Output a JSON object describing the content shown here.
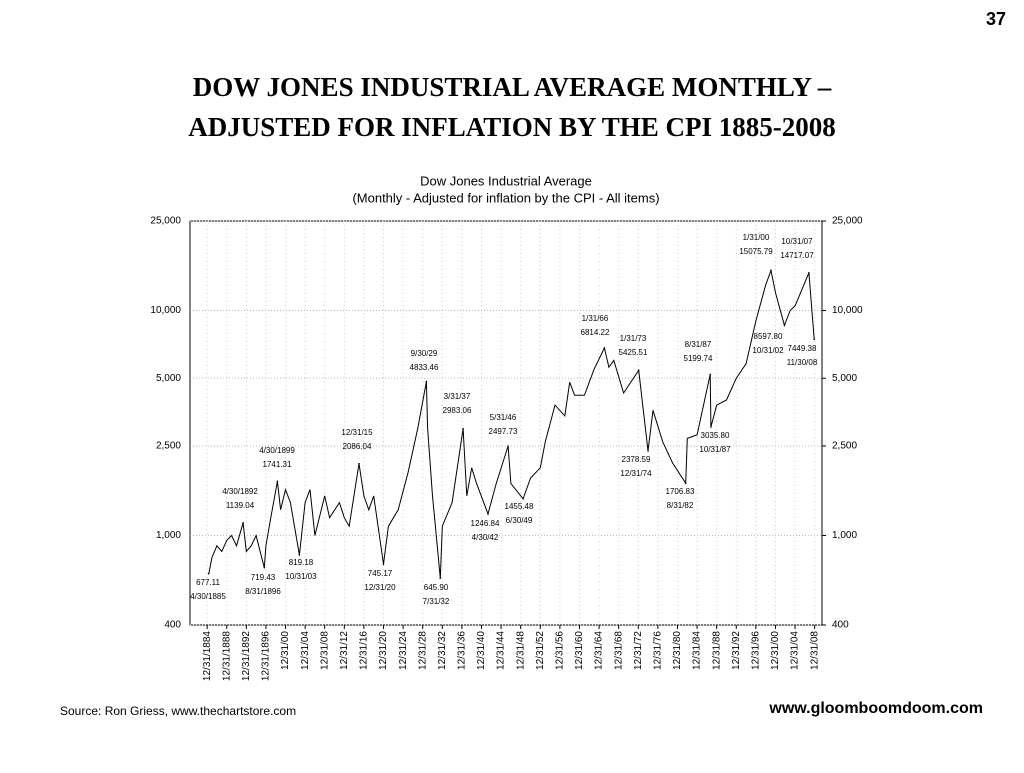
{
  "page_number": "37",
  "heading": [
    "DOW  JONES  INDUSTRIAL  AVERAGE  MONTHLY –",
    "ADJUSTED  FOR  INFLATION  BY  THE  CPI  1885-2008"
  ],
  "source": "Source:  Ron Griess, www.thechartstore.com",
  "website": "www.gloomboomdoom.com",
  "chart_data": {
    "type": "line",
    "title": "Dow Jones Industrial Average",
    "subtitle": "(Monthly - Adjusted for inflation by the CPI - All items)",
    "log_y": true,
    "grid": true,
    "xlim": [
      1881.5,
      2010.5
    ],
    "ylim": [
      400,
      25000
    ],
    "yticks": [
      {
        "value": 400,
        "label": "400"
      },
      {
        "value": 1000,
        "label": "1,000"
      },
      {
        "value": 2500,
        "label": "2,500"
      },
      {
        "value": 5000,
        "label": "5,000"
      },
      {
        "value": 10000,
        "label": "10,000"
      },
      {
        "value": 25000,
        "label": "25,000"
      }
    ],
    "xticks": [
      {
        "value": 1885,
        "label": "12/31/1884"
      },
      {
        "value": 1889,
        "label": "12/31/1888"
      },
      {
        "value": 1893,
        "label": "12/31/1892"
      },
      {
        "value": 1897,
        "label": "12/31/1896"
      },
      {
        "value": 1901,
        "label": "12/31/00"
      },
      {
        "value": 1905,
        "label": "12/31/04"
      },
      {
        "value": 1909,
        "label": "12/31/08"
      },
      {
        "value": 1913,
        "label": "12/31/12"
      },
      {
        "value": 1917,
        "label": "12/31/16"
      },
      {
        "value": 1921,
        "label": "12/31/20"
      },
      {
        "value": 1925,
        "label": "12/31/24"
      },
      {
        "value": 1929,
        "label": "12/31/28"
      },
      {
        "value": 1933,
        "label": "12/31/32"
      },
      {
        "value": 1937,
        "label": "12/31/36"
      },
      {
        "value": 1941,
        "label": "12/31/40"
      },
      {
        "value": 1945,
        "label": "12/31/44"
      },
      {
        "value": 1949,
        "label": "12/31/48"
      },
      {
        "value": 1953,
        "label": "12/31/52"
      },
      {
        "value": 1957,
        "label": "12/31/56"
      },
      {
        "value": 1961,
        "label": "12/31/60"
      },
      {
        "value": 1965,
        "label": "12/31/64"
      },
      {
        "value": 1969,
        "label": "12/31/68"
      },
      {
        "value": 1973,
        "label": "12/31/72"
      },
      {
        "value": 1977,
        "label": "12/31/76"
      },
      {
        "value": 1981,
        "label": "12/31/80"
      },
      {
        "value": 1985,
        "label": "12/31/84"
      },
      {
        "value": 1989,
        "label": "12/31/88"
      },
      {
        "value": 1993,
        "label": "12/31/92"
      },
      {
        "value": 1997,
        "label": "12/31/96"
      },
      {
        "value": 2001,
        "label": "12/31/00"
      },
      {
        "value": 2005,
        "label": "12/31/04"
      },
      {
        "value": 2009,
        "label": "12/31/08"
      }
    ],
    "x": [
      1885.33,
      1886,
      1887,
      1888,
      1889,
      1890,
      1891,
      1892.33,
      1893,
      1894,
      1895,
      1896.67,
      1897,
      1898,
      1899.33,
      1900,
      1901,
      1902,
      1903.83,
      1905,
      1906,
      1907,
      1909,
      1910,
      1912,
      1913,
      1914,
      1915.99,
      1917,
      1918,
      1919,
      1920.99,
      1922,
      1924,
      1926,
      1928,
      1929.75,
      1930,
      1931,
      1932.58,
      1933,
      1935,
      1937.25,
      1938,
      1939,
      1940,
      1942.33,
      1944,
      1946.42,
      1947,
      1949.5,
      1951,
      1953,
      1954,
      1956,
      1958,
      1959,
      1960,
      1962,
      1964,
      1966.08,
      1967,
      1968,
      1970,
      1973.08,
      1974.99,
      1976,
      1978,
      1980,
      1982.67,
      1983,
      1985,
      1987.67,
      1987.83,
      1989,
      1991,
      1993,
      1995,
      1997,
      1999,
      2000.08,
      2001,
      2002.83,
      2004,
      2005,
      2007.83,
      2008.9
    ],
    "series": [
      {
        "color": "#000000",
        "values": [
          677,
          800,
          900,
          850,
          950,
          1000,
          900,
          1139,
          850,
          900,
          1000,
          719,
          900,
          1200,
          1741,
          1300,
          1600,
          1400,
          819,
          1400,
          1600,
          1000,
          1500,
          1200,
          1400,
          1200,
          1100,
          2086,
          1500,
          1300,
          1500,
          745,
          1100,
          1300,
          1900,
          3000,
          4833,
          3000,
          1500,
          646,
          1100,
          1400,
          2983,
          1500,
          2000,
          1700,
          1247,
          1700,
          2498,
          1700,
          1455,
          1800,
          2000,
          2600,
          3800,
          3400,
          4800,
          4200,
          4200,
          5500,
          6814,
          5600,
          6000,
          4300,
          5426,
          2379,
          3600,
          2600,
          2100,
          1707,
          2700,
          2800,
          5200,
          3036,
          3800,
          4000,
          5000,
          5800,
          9000,
          13000,
          15076,
          12000,
          8598,
          10000,
          10500,
          14717,
          7449
        ]
      }
    ],
    "annotations": [
      {
        "x": 1885.33,
        "date": "4/30/1885",
        "value": 677.11,
        "label": "677.11"
      },
      {
        "x": 1896.67,
        "date": "8/31/1896",
        "value": 719.43,
        "label": "719.43"
      },
      {
        "x": 1892.33,
        "date": "4/30/1892",
        "value": 1139.04,
        "label": "1139.04"
      },
      {
        "x": 1899.33,
        "date": "4/30/1899",
        "value": 1741.31,
        "label": "1741.31"
      },
      {
        "x": 1903.83,
        "date": "10/31/03",
        "value": 819.18,
        "label": "819.18"
      },
      {
        "x": 1915.99,
        "date": "12/31/15",
        "value": 2086.04,
        "label": "2086.04"
      },
      {
        "x": 1920.99,
        "date": "12/31/20",
        "value": 745.17,
        "label": "745.17"
      },
      {
        "x": 1929.75,
        "date": "9/30/29",
        "value": 4833.46,
        "label": "4833.46"
      },
      {
        "x": 1932.58,
        "date": "7/31/32",
        "value": 645.9,
        "label": "645.90"
      },
      {
        "x": 1937.25,
        "date": "3/31/37",
        "value": 2983.06,
        "label": "2983.06"
      },
      {
        "x": 1942.33,
        "date": "4/30/42",
        "value": 1246.84,
        "label": "1246.84"
      },
      {
        "x": 1946.42,
        "date": "5/31/46",
        "value": 2497.73,
        "label": "2497.73"
      },
      {
        "x": 1949.5,
        "date": "6/30/49",
        "value": 1455.48,
        "label": "1455.48"
      },
      {
        "x": 1966.08,
        "date": "1/31/66",
        "value": 6814.22,
        "label": "6814.22"
      },
      {
        "x": 1973.08,
        "date": "1/31/73",
        "value": 5425.51,
        "label": "5425.51"
      },
      {
        "x": 1974.99,
        "date": "12/31/74",
        "value": 2378.59,
        "label": "2378.59"
      },
      {
        "x": 1982.67,
        "date": "8/31/82",
        "value": 1706.83,
        "label": "1706.83"
      },
      {
        "x": 1987.67,
        "date": "8/31/87",
        "value": 5199.74,
        "label": "5199.74"
      },
      {
        "x": 1987.83,
        "date": "10/31/87",
        "value": 3035.8,
        "label": "3035.80"
      },
      {
        "x": 2000.08,
        "date": "1/31/00",
        "value": 15075.79,
        "label": "15075.79"
      },
      {
        "x": 2007.83,
        "date": "10/31/07",
        "value": 14717.07,
        "label": "14717.07"
      },
      {
        "x": 2002.83,
        "date": "10/31/02",
        "value": 8597.8,
        "label": "8597.80"
      },
      {
        "x": 2008.9,
        "date": "11/30/08",
        "value": 7449.38,
        "label": "7449.38"
      }
    ]
  }
}
